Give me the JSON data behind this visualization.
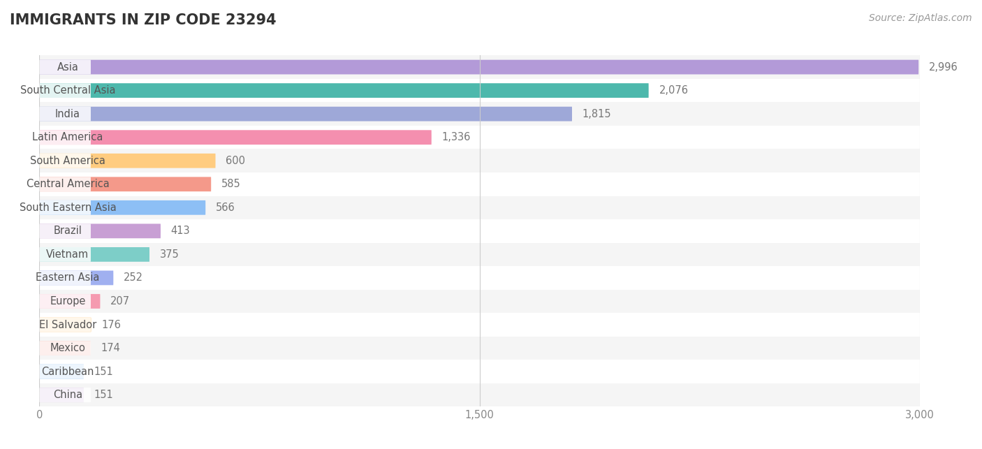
{
  "title": "IMMIGRANTS IN ZIP CODE 23294",
  "source": "Source: ZipAtlas.com",
  "categories": [
    "Asia",
    "South Central Asia",
    "India",
    "Latin America",
    "South America",
    "Central America",
    "South Eastern Asia",
    "Brazil",
    "Vietnam",
    "Eastern Asia",
    "Europe",
    "El Salvador",
    "Mexico",
    "Caribbean",
    "China"
  ],
  "values": [
    2996,
    2076,
    1815,
    1336,
    600,
    585,
    566,
    413,
    375,
    252,
    207,
    176,
    174,
    151,
    151
  ],
  "bar_colors": [
    "#b39ad8",
    "#4db8ac",
    "#9ea8d8",
    "#f48faf",
    "#ffcc80",
    "#f4998a",
    "#8dbff5",
    "#c89fd4",
    "#7dcec8",
    "#a0b0f0",
    "#f59ab0",
    "#ffcc80",
    "#f4998a",
    "#8dbff5",
    "#c8a8d8"
  ],
  "background_color": "#ffffff",
  "row_bg_even": "#f5f5f5",
  "row_bg_odd": "#ffffff",
  "xlim": [
    0,
    3000
  ],
  "xticks": [
    0,
    1500,
    3000
  ],
  "title_fontsize": 15,
  "label_fontsize": 10.5,
  "value_fontsize": 10.5,
  "source_fontsize": 10
}
